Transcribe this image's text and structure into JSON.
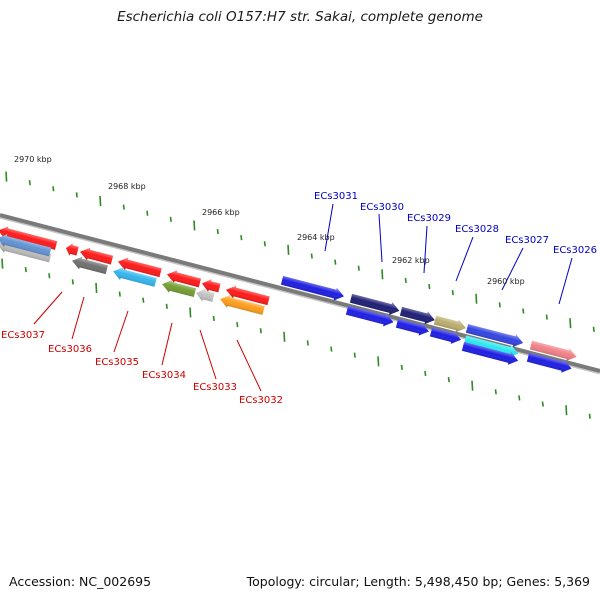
{
  "title": "Escherichia coli O157:H7 str. Sakai, complete genome",
  "footer": {
    "accession": "Accession: NC_002695",
    "topology": "Topology: circular; Length: 5,498,450 bp; Genes: 5,369"
  },
  "colors": {
    "backbone": "#7a7a7a",
    "tick": "#2e8b22",
    "kbp_label": "#222222",
    "forward_label": "#0000c0",
    "reverse_label": "#cc0000"
  },
  "kbp_labels": [
    "2970 kbp",
    "2968 kbp",
    "2966 kbp",
    "2964 kbp",
    "2962 kbp",
    "2960 kbp"
  ],
  "genes": [
    {
      "name": "ECs3037",
      "strand": "reverse",
      "color": "#5b8fd1"
    },
    {
      "name": "ECs3036",
      "strand": "reverse",
      "color": "#6a6a6a"
    },
    {
      "name": "ECs3035",
      "strand": "reverse",
      "color": "#2ab4ee"
    },
    {
      "name": "ECs3034",
      "strand": "reverse",
      "color": "#6e9a28"
    },
    {
      "name": "ECs3033",
      "strand": "reverse",
      "color": "#c0c0c0"
    },
    {
      "name": "ECs3032",
      "strand": "reverse",
      "color": "#ff9a12"
    },
    {
      "name": "ECs3031",
      "strand": "forward",
      "color": "#1414e0"
    },
    {
      "name": "ECs3030",
      "strand": "forward",
      "color": "#151570"
    },
    {
      "name": "ECs3029",
      "strand": "forward",
      "color": "#b8aa68"
    },
    {
      "name": "ECs3028",
      "strand": "forward",
      "color": "#2a3ce0"
    },
    {
      "name": "ECs3027",
      "strand": "forward",
      "color": "#20e8ee"
    },
    {
      "name": "ECs3026",
      "strand": "forward",
      "color": "#f07c82"
    }
  ],
  "unlabeled_gene_colors": {
    "reverse_red": "#ff1010",
    "forward_blue": "#1414e6"
  }
}
